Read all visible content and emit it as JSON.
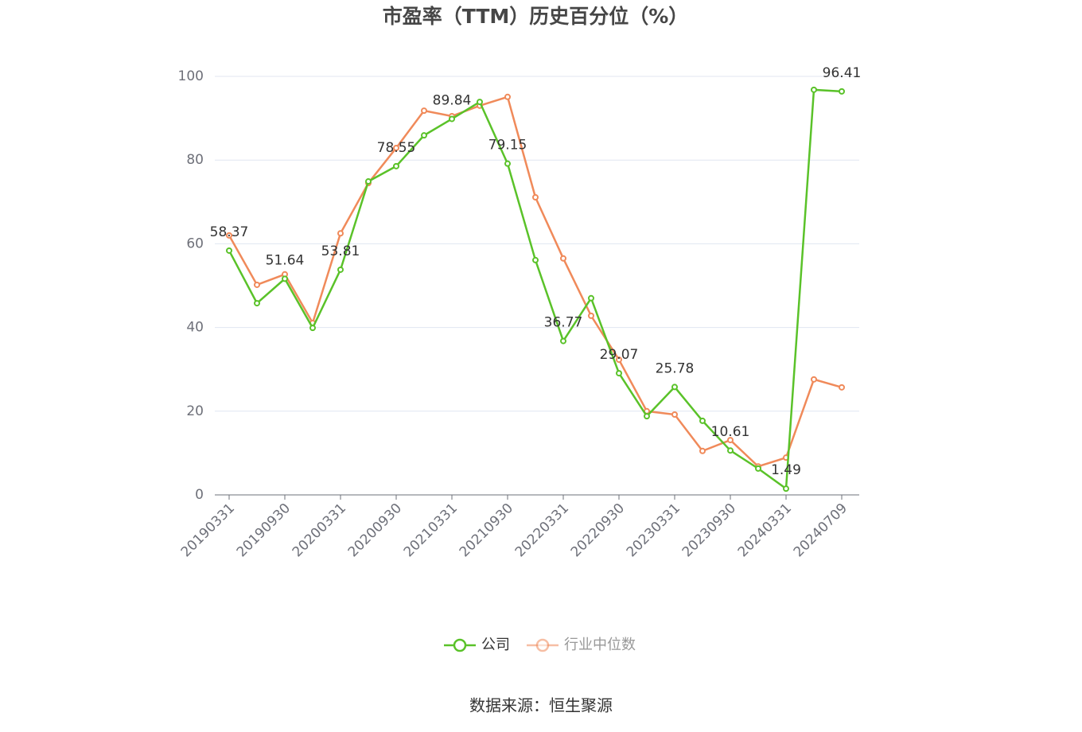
{
  "chart_data": {
    "type": "line",
    "title": "市盈率（TTM）历史百分位（%）",
    "source": "数据来源：恒生聚源",
    "categories": [
      "20190331",
      null,
      "20190930",
      null,
      "20200331",
      null,
      "20200930",
      null,
      "20210331",
      null,
      "20210930",
      null,
      "20220331",
      null,
      "20220930",
      null,
      "20230331",
      null,
      "20230930",
      null,
      "20240331",
      null,
      "20240709"
    ],
    "series": [
      {
        "name": "公司",
        "color": "#5ac229",
        "values": [
          58.37,
          45.8,
          51.64,
          39.9,
          53.81,
          74.9,
          78.55,
          85.9,
          89.84,
          93.9,
          79.15,
          56.1,
          36.77,
          47.0,
          29.07,
          18.8,
          25.78,
          17.7,
          10.61,
          6.3,
          1.49,
          96.8,
          96.41
        ],
        "value_labels": [
          "58.37",
          null,
          "51.64",
          null,
          "53.81",
          null,
          "78.55",
          null,
          "89.84",
          null,
          "79.15",
          null,
          "36.77",
          null,
          "29.07",
          null,
          "25.78",
          null,
          "10.61",
          null,
          "1.49",
          null,
          "96.41"
        ]
      },
      {
        "name": "行业中位数",
        "color": "#f08a5a",
        "values": [
          62.0,
          50.2,
          52.7,
          41.1,
          62.5,
          74.5,
          82.9,
          91.8,
          90.5,
          93.0,
          95.1,
          71.1,
          56.5,
          42.8,
          32.3,
          20.0,
          19.2,
          10.5,
          13.1,
          6.8,
          8.9,
          27.6,
          25.7
        ]
      }
    ],
    "ylim": [
      0,
      100
    ],
    "yticks": [
      0,
      20,
      40,
      60,
      80,
      100
    ],
    "grid": true,
    "legend": "bottom"
  }
}
